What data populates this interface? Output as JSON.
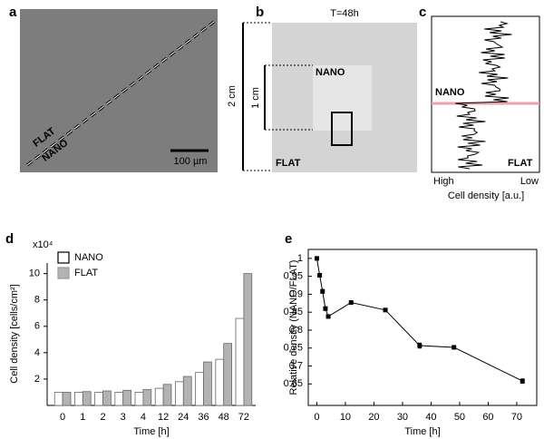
{
  "panels": [
    {
      "label": "a",
      "texts": [
        "FLAT",
        "NANO",
        "100 µm"
      ]
    },
    {
      "label": "b",
      "texts": [
        "T=48h",
        "2 cm",
        "1 cm",
        "NANO",
        "FLAT"
      ]
    },
    {
      "label": "c",
      "texts": [
        "NANO",
        "FLAT",
        "High",
        "Low",
        "Cell density [a.u.]"
      ]
    }
  ],
  "chart_data": [
    {
      "type": "bar",
      "panel_label": "d",
      "ylabel": "Cell density [cells/cm²]",
      "multiplier": "x10⁴",
      "xlabel": "Time [h]",
      "categories": [
        "0",
        "1",
        "2",
        "3",
        "4",
        "12",
        "24",
        "36",
        "48",
        "72"
      ],
      "series": [
        {
          "name": "NANO",
          "color": "#ffffff",
          "values": [
            1.0,
            1.0,
            1.0,
            1.0,
            1.0,
            1.3,
            1.8,
            2.5,
            3.5,
            6.6
          ]
        },
        {
          "name": "FLAT",
          "color": "#b3b3b3",
          "values": [
            1.0,
            1.05,
            1.1,
            1.15,
            1.2,
            1.6,
            2.2,
            3.3,
            4.7,
            10.0
          ]
        }
      ],
      "ylim": [
        0,
        10.8
      ],
      "yticks": [
        2,
        4,
        6,
        8,
        10
      ],
      "legend": "top-left"
    },
    {
      "type": "line",
      "panel_label": "e",
      "ylabel": "Relative density (NANO/FLAT)",
      "xlabel": "Time [h]",
      "x": [
        0,
        1,
        2,
        3,
        4,
        12,
        24,
        36,
        48,
        72
      ],
      "values": [
        1.0,
        0.953,
        0.908,
        0.86,
        0.838,
        0.877,
        0.856,
        0.757,
        0.752,
        0.658
      ],
      "errors": [
        0.002,
        0.005,
        0.005,
        0.005,
        0.004,
        0.004,
        0.003,
        0.007,
        0.002,
        0.006
      ],
      "color": "#000000",
      "xlim": [
        -3,
        77
      ],
      "xticks": [
        0,
        10,
        20,
        30,
        40,
        50,
        60,
        70
      ],
      "ylim": [
        0.59,
        1.025
      ],
      "yticks": [
        0.65,
        0.7,
        0.75,
        0.8,
        0.85,
        0.9,
        0.95,
        1
      ]
    }
  ]
}
